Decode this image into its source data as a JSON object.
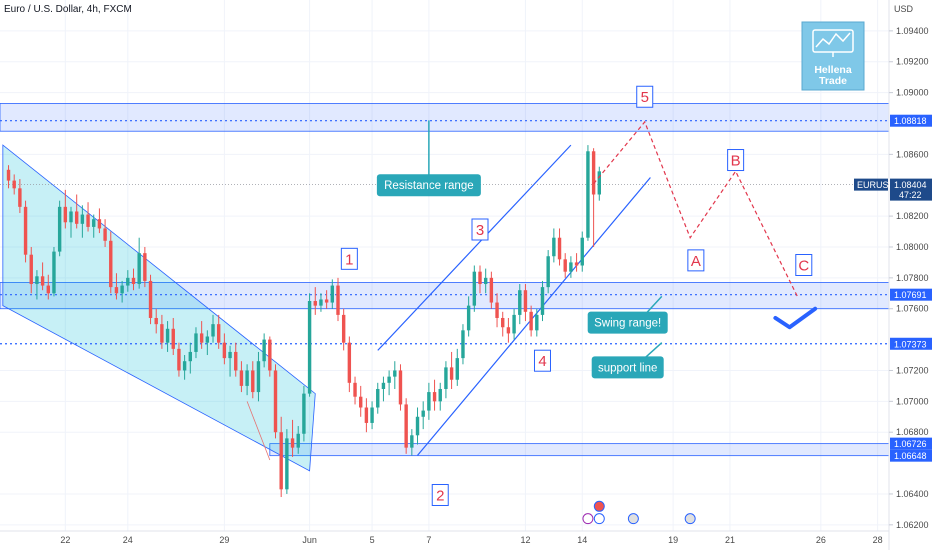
{
  "chart_data": {
    "type": "candlestick",
    "title": "Euro / U.S. Dollar, 4h, FXCM",
    "currency_label": "USD",
    "y_axis": {
      "ticks": [
        1.094,
        1.092,
        1.09,
        1.086,
        1.082,
        1.08,
        1.078,
        1.076,
        1.072,
        1.07,
        1.068,
        1.064,
        1.062
      ],
      "tick_labels": [
        "1.09400",
        "1.09200",
        "1.09000",
        "1.08600",
        "1.08200",
        "1.08000",
        "1.07800",
        "1.07600",
        "1.07200",
        "1.07000",
        "1.06800",
        "1.06400",
        "1.06200"
      ],
      "ylim": [
        1.0616,
        1.096
      ]
    },
    "x_axis": {
      "ticks": [
        {
          "label": "22",
          "i": 10
        },
        {
          "label": "24",
          "i": 21
        },
        {
          "label": "29",
          "i": 38
        },
        {
          "label": "Jun",
          "i": 53
        },
        {
          "label": "5",
          "i": 64
        },
        {
          "label": "7",
          "i": 74
        },
        {
          "label": "12",
          "i": 91
        },
        {
          "label": "14",
          "i": 101
        },
        {
          "label": "19",
          "i": 117
        },
        {
          "label": "21",
          "i": 127
        },
        {
          "label": "26",
          "i": 143
        },
        {
          "label": "28",
          "i": 153
        }
      ],
      "xlim": [
        -1.5,
        155
      ]
    },
    "price_tags": [
      {
        "label": "1.08818",
        "value": 1.08818,
        "kind": "level"
      },
      {
        "label": "1.07691",
        "value": 1.07691,
        "kind": "level"
      },
      {
        "label": "1.07373",
        "value": 1.07373,
        "kind": "level"
      },
      {
        "label": "1.06726",
        "value": 1.06726,
        "kind": "level"
      },
      {
        "label": "1.06648",
        "value": 1.06648,
        "kind": "level"
      }
    ],
    "current_price": {
      "symbol": "EURUSD",
      "label": "1.08404",
      "value": 1.08404,
      "countdown": "47:22"
    },
    "zones": [
      {
        "name": "resistance",
        "from": 1.0875,
        "to": 1.0893
      },
      {
        "name": "swing",
        "from": 1.076,
        "to": 1.0777
      },
      {
        "name": "support",
        "from": 1.06648,
        "to": 1.06726
      }
    ],
    "annotations": [
      {
        "text": "Resistance range",
        "i": 74,
        "v": 1.084
      },
      {
        "text": "Swing range!",
        "i": 109,
        "v": 1.0751
      },
      {
        "text": "support line",
        "i": 109,
        "v": 1.0722
      }
    ],
    "wave_labels": [
      {
        "text": "1",
        "i": 60,
        "v": 1.0792
      },
      {
        "text": "2",
        "i": 76,
        "v": 1.0639
      },
      {
        "text": "3",
        "i": 83,
        "v": 1.0811
      },
      {
        "text": "4",
        "i": 94,
        "v": 1.0726
      },
      {
        "text": "5",
        "i": 112,
        "v": 1.0897
      },
      {
        "text": "A",
        "i": 121,
        "v": 1.0791
      },
      {
        "text": "B",
        "i": 128,
        "v": 1.0856
      },
      {
        "text": "C",
        "i": 140,
        "v": 1.0788
      }
    ],
    "projection_path": [
      {
        "i": 103,
        "v": 1.0841
      },
      {
        "i": 112,
        "v": 1.0881
      },
      {
        "i": 120,
        "v": 1.0806
      },
      {
        "i": 128,
        "v": 1.0849
      },
      {
        "i": 139,
        "v": 1.0767
      }
    ],
    "logo_lines": [
      "Hellena",
      "Trade"
    ],
    "candles": [
      {
        "o": 1.085,
        "h": 1.0853,
        "l": 1.0838,
        "c": 1.0843
      },
      {
        "o": 1.0843,
        "h": 1.0847,
        "l": 1.0834,
        "c": 1.0838
      },
      {
        "o": 1.0838,
        "h": 1.0844,
        "l": 1.0822,
        "c": 1.0826
      },
      {
        "o": 1.0826,
        "h": 1.083,
        "l": 1.079,
        "c": 1.0795
      },
      {
        "o": 1.0795,
        "h": 1.08,
        "l": 1.077,
        "c": 1.0776
      },
      {
        "o": 1.0776,
        "h": 1.0785,
        "l": 1.0766,
        "c": 1.0781
      },
      {
        "o": 1.0781,
        "h": 1.079,
        "l": 1.0772,
        "c": 1.0775
      },
      {
        "o": 1.0775,
        "h": 1.0782,
        "l": 1.0766,
        "c": 1.077
      },
      {
        "o": 1.077,
        "h": 1.08,
        "l": 1.0768,
        "c": 1.0797
      },
      {
        "o": 1.0797,
        "h": 1.083,
        "l": 1.0794,
        "c": 1.0826
      },
      {
        "o": 1.0826,
        "h": 1.0837,
        "l": 1.0812,
        "c": 1.0816
      },
      {
        "o": 1.0816,
        "h": 1.0826,
        "l": 1.0806,
        "c": 1.0823
      },
      {
        "o": 1.0823,
        "h": 1.0834,
        "l": 1.0812,
        "c": 1.0815
      },
      {
        "o": 1.0815,
        "h": 1.0827,
        "l": 1.0806,
        "c": 1.0821
      },
      {
        "o": 1.0821,
        "h": 1.0829,
        "l": 1.081,
        "c": 1.0813
      },
      {
        "o": 1.0813,
        "h": 1.0821,
        "l": 1.0806,
        "c": 1.0818
      },
      {
        "o": 1.0818,
        "h": 1.0825,
        "l": 1.0809,
        "c": 1.0812
      },
      {
        "o": 1.0812,
        "h": 1.0818,
        "l": 1.08,
        "c": 1.0804
      },
      {
        "o": 1.0804,
        "h": 1.081,
        "l": 1.077,
        "c": 1.0774
      },
      {
        "o": 1.0774,
        "h": 1.0783,
        "l": 1.0766,
        "c": 1.077
      },
      {
        "o": 1.077,
        "h": 1.0778,
        "l": 1.0764,
        "c": 1.0775
      },
      {
        "o": 1.0775,
        "h": 1.0785,
        "l": 1.0771,
        "c": 1.078
      },
      {
        "o": 1.078,
        "h": 1.0786,
        "l": 1.0772,
        "c": 1.0776
      },
      {
        "o": 1.0776,
        "h": 1.0806,
        "l": 1.0773,
        "c": 1.0796
      },
      {
        "o": 1.0796,
        "h": 1.08,
        "l": 1.0774,
        "c": 1.0778
      },
      {
        "o": 1.0778,
        "h": 1.0782,
        "l": 1.075,
        "c": 1.0754
      },
      {
        "o": 1.0754,
        "h": 1.076,
        "l": 1.0744,
        "c": 1.075
      },
      {
        "o": 1.075,
        "h": 1.0756,
        "l": 1.0734,
        "c": 1.0738
      },
      {
        "o": 1.0738,
        "h": 1.0752,
        "l": 1.0732,
        "c": 1.0747
      },
      {
        "o": 1.0747,
        "h": 1.0754,
        "l": 1.073,
        "c": 1.0734
      },
      {
        "o": 1.0734,
        "h": 1.0738,
        "l": 1.0716,
        "c": 1.072
      },
      {
        "o": 1.072,
        "h": 1.073,
        "l": 1.0714,
        "c": 1.0726
      },
      {
        "o": 1.0726,
        "h": 1.0738,
        "l": 1.0718,
        "c": 1.0732
      },
      {
        "o": 1.0732,
        "h": 1.0748,
        "l": 1.0728,
        "c": 1.0744
      },
      {
        "o": 1.0744,
        "h": 1.0752,
        "l": 1.0734,
        "c": 1.0738
      },
      {
        "o": 1.0738,
        "h": 1.0746,
        "l": 1.073,
        "c": 1.0742
      },
      {
        "o": 1.0742,
        "h": 1.0756,
        "l": 1.0738,
        "c": 1.075
      },
      {
        "o": 1.075,
        "h": 1.0756,
        "l": 1.0734,
        "c": 1.0738
      },
      {
        "o": 1.0738,
        "h": 1.0744,
        "l": 1.0724,
        "c": 1.0728
      },
      {
        "o": 1.0728,
        "h": 1.0736,
        "l": 1.0716,
        "c": 1.0732
      },
      {
        "o": 1.0732,
        "h": 1.0738,
        "l": 1.0716,
        "c": 1.072
      },
      {
        "o": 1.072,
        "h": 1.0726,
        "l": 1.0706,
        "c": 1.071
      },
      {
        "o": 1.071,
        "h": 1.0724,
        "l": 1.0704,
        "c": 1.072
      },
      {
        "o": 1.072,
        "h": 1.0726,
        "l": 1.0702,
        "c": 1.0706
      },
      {
        "o": 1.0706,
        "h": 1.0732,
        "l": 1.07,
        "c": 1.0726
      },
      {
        "o": 1.0726,
        "h": 1.0744,
        "l": 1.0722,
        "c": 1.074
      },
      {
        "o": 1.074,
        "h": 1.0742,
        "l": 1.0716,
        "c": 1.072
      },
      {
        "o": 1.072,
        "h": 1.0724,
        "l": 1.0676,
        "c": 1.068
      },
      {
        "o": 1.068,
        "h": 1.069,
        "l": 1.0638,
        "c": 1.0643
      },
      {
        "o": 1.0643,
        "h": 1.0682,
        "l": 1.064,
        "c": 1.0676
      },
      {
        "o": 1.0676,
        "h": 1.0688,
        "l": 1.0664,
        "c": 1.067
      },
      {
        "o": 1.067,
        "h": 1.0684,
        "l": 1.0666,
        "c": 1.0679
      },
      {
        "o": 1.0679,
        "h": 1.071,
        "l": 1.0674,
        "c": 1.0705
      },
      {
        "o": 1.0705,
        "h": 1.077,
        "l": 1.0703,
        "c": 1.0765
      },
      {
        "o": 1.0765,
        "h": 1.0774,
        "l": 1.0756,
        "c": 1.0762
      },
      {
        "o": 1.0762,
        "h": 1.077,
        "l": 1.0758,
        "c": 1.0766
      },
      {
        "o": 1.0766,
        "h": 1.0772,
        "l": 1.076,
        "c": 1.0764
      },
      {
        "o": 1.0764,
        "h": 1.0779,
        "l": 1.076,
        "c": 1.0775
      },
      {
        "o": 1.0775,
        "h": 1.078,
        "l": 1.0752,
        "c": 1.0756
      },
      {
        "o": 1.0756,
        "h": 1.076,
        "l": 1.0733,
        "c": 1.0738
      },
      {
        "o": 1.0738,
        "h": 1.0742,
        "l": 1.0706,
        "c": 1.0712
      },
      {
        "o": 1.0712,
        "h": 1.0716,
        "l": 1.0698,
        "c": 1.0703
      },
      {
        "o": 1.0703,
        "h": 1.071,
        "l": 1.069,
        "c": 1.0696
      },
      {
        "o": 1.0696,
        "h": 1.0702,
        "l": 1.068,
        "c": 1.0686
      },
      {
        "o": 1.0686,
        "h": 1.07,
        "l": 1.0682,
        "c": 1.0696
      },
      {
        "o": 1.0696,
        "h": 1.0712,
        "l": 1.0692,
        "c": 1.0708
      },
      {
        "o": 1.0708,
        "h": 1.0716,
        "l": 1.07,
        "c": 1.0712
      },
      {
        "o": 1.0712,
        "h": 1.072,
        "l": 1.0704,
        "c": 1.0716
      },
      {
        "o": 1.0716,
        "h": 1.0726,
        "l": 1.0708,
        "c": 1.072
      },
      {
        "o": 1.072,
        "h": 1.0724,
        "l": 1.0694,
        "c": 1.0698
      },
      {
        "o": 1.0698,
        "h": 1.0702,
        "l": 1.0666,
        "c": 1.067
      },
      {
        "o": 1.067,
        "h": 1.0682,
        "l": 1.0665,
        "c": 1.0678
      },
      {
        "o": 1.0678,
        "h": 1.0696,
        "l": 1.0672,
        "c": 1.069
      },
      {
        "o": 1.069,
        "h": 1.07,
        "l": 1.0682,
        "c": 1.0694
      },
      {
        "o": 1.0694,
        "h": 1.0712,
        "l": 1.0688,
        "c": 1.0706
      },
      {
        "o": 1.0706,
        "h": 1.0714,
        "l": 1.0694,
        "c": 1.07
      },
      {
        "o": 1.07,
        "h": 1.0712,
        "l": 1.0694,
        "c": 1.0708
      },
      {
        "o": 1.0708,
        "h": 1.0726,
        "l": 1.0702,
        "c": 1.0722
      },
      {
        "o": 1.0722,
        "h": 1.0732,
        "l": 1.0708,
        "c": 1.0714
      },
      {
        "o": 1.0714,
        "h": 1.0734,
        "l": 1.071,
        "c": 1.0728
      },
      {
        "o": 1.0728,
        "h": 1.075,
        "l": 1.0724,
        "c": 1.0746
      },
      {
        "o": 1.0746,
        "h": 1.0768,
        "l": 1.0742,
        "c": 1.0762
      },
      {
        "o": 1.0762,
        "h": 1.0788,
        "l": 1.0758,
        "c": 1.0784
      },
      {
        "o": 1.0784,
        "h": 1.0788,
        "l": 1.077,
        "c": 1.0776
      },
      {
        "o": 1.0776,
        "h": 1.0786,
        "l": 1.077,
        "c": 1.078
      },
      {
        "o": 1.078,
        "h": 1.0784,
        "l": 1.076,
        "c": 1.0764
      },
      {
        "o": 1.0764,
        "h": 1.077,
        "l": 1.0748,
        "c": 1.0754
      },
      {
        "o": 1.0754,
        "h": 1.0758,
        "l": 1.0742,
        "c": 1.0748
      },
      {
        "o": 1.0748,
        "h": 1.0754,
        "l": 1.0738,
        "c": 1.0744
      },
      {
        "o": 1.0744,
        "h": 1.076,
        "l": 1.074,
        "c": 1.0756
      },
      {
        "o": 1.0756,
        "h": 1.0776,
        "l": 1.075,
        "c": 1.0772
      },
      {
        "o": 1.0772,
        "h": 1.0776,
        "l": 1.0752,
        "c": 1.0758
      },
      {
        "o": 1.0758,
        "h": 1.0762,
        "l": 1.0742,
        "c": 1.0746
      },
      {
        "o": 1.0746,
        "h": 1.076,
        "l": 1.0742,
        "c": 1.0756
      },
      {
        "o": 1.0756,
        "h": 1.0778,
        "l": 1.0752,
        "c": 1.0774
      },
      {
        "o": 1.0774,
        "h": 1.0798,
        "l": 1.077,
        "c": 1.0794
      },
      {
        "o": 1.0794,
        "h": 1.0812,
        "l": 1.079,
        "c": 1.0806
      },
      {
        "o": 1.0806,
        "h": 1.0812,
        "l": 1.0788,
        "c": 1.0792
      },
      {
        "o": 1.0792,
        "h": 1.0796,
        "l": 1.078,
        "c": 1.0784
      },
      {
        "o": 1.0784,
        "h": 1.0794,
        "l": 1.078,
        "c": 1.079
      },
      {
        "o": 1.079,
        "h": 1.0796,
        "l": 1.0784,
        "c": 1.0788
      },
      {
        "o": 1.0788,
        "h": 1.081,
        "l": 1.0784,
        "c": 1.0806
      },
      {
        "o": 1.0806,
        "h": 1.0866,
        "l": 1.0804,
        "c": 1.0862
      },
      {
        "o": 1.0862,
        "h": 1.0864,
        "l": 1.08,
        "c": 1.0834
      },
      {
        "o": 1.0834,
        "h": 1.0852,
        "l": 1.083,
        "c": 1.0849
      }
    ]
  }
}
